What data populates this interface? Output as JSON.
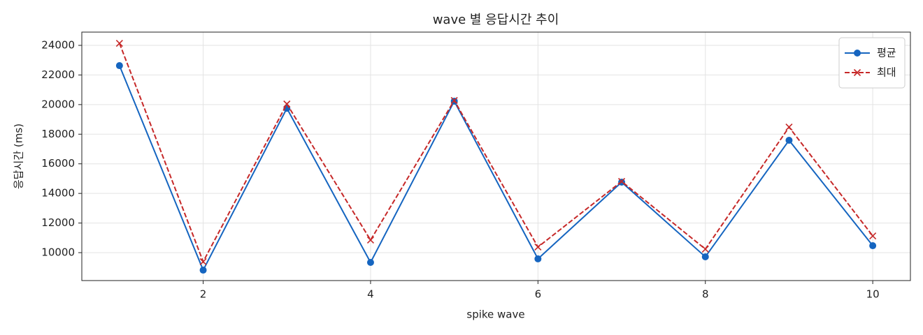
{
  "chart_data": {
    "type": "line",
    "title": "wave 별 응답시간 추이",
    "x_label": "spike wave",
    "y_label": "응답시간 (ms)",
    "x": [
      1,
      2,
      3,
      4,
      5,
      6,
      7,
      8,
      9,
      10
    ],
    "series": [
      {
        "name": "평균",
        "color": "#1565c0",
        "marker": "o",
        "linestyle": "solid",
        "values": [
          22630,
          8820,
          19750,
          9340,
          20230,
          9580,
          14760,
          9720,
          17590,
          10470
        ]
      },
      {
        "name": "최대",
        "color": "#c62828",
        "marker": "x",
        "linestyle": "dashed",
        "values": [
          24140,
          9390,
          20040,
          10850,
          20280,
          10380,
          14810,
          10240,
          18480,
          11130
        ]
      }
    ],
    "xlim": [
      0.55,
      10.45
    ],
    "ylim": [
      8115,
      24895
    ],
    "xticks": [
      2,
      4,
      6,
      8,
      10
    ],
    "yticks": [
      10000,
      12000,
      14000,
      16000,
      18000,
      20000,
      22000,
      24000
    ],
    "grid": true,
    "legend": "upper right"
  }
}
